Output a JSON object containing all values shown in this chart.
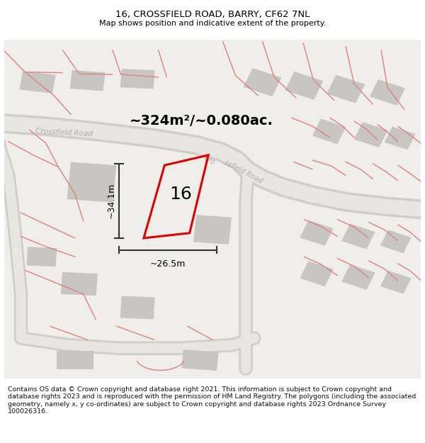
{
  "title": "16, CROSSFIELD ROAD, BARRY, CF62 7NL",
  "subtitle": "Map shows position and indicative extent of the property.",
  "footer": "Contains OS data © Crown copyright and database right 2021. This information is subject to Crown copyright and database rights 2023 and is reproduced with the permission of HM Land Registry. The polygons (including the associated geometry, namely x, y co-ordinates) are subject to Crown copyright and database rights 2023 Ordnance Survey 100026316.",
  "area_text": "~324m²/~0.080ac.",
  "dim_vertical": "~34.1m",
  "dim_horizontal": "~26.5m",
  "property_number": "16",
  "map_bg": "#f0eeea",
  "property_outline_color": "#dd0000",
  "title_fontsize": 9.5,
  "subtitle_fontsize": 8.0,
  "footer_fontsize": 6.8,
  "pink": "#e08080",
  "road_fill": "#e8e6e2",
  "road_border": "#d0cec8",
  "building_fill": "#c8c6c2",
  "dim_color": "#333333",
  "road_label_color": "#b0aeaa",
  "area_fontsize": 14,
  "number_fontsize": 18
}
